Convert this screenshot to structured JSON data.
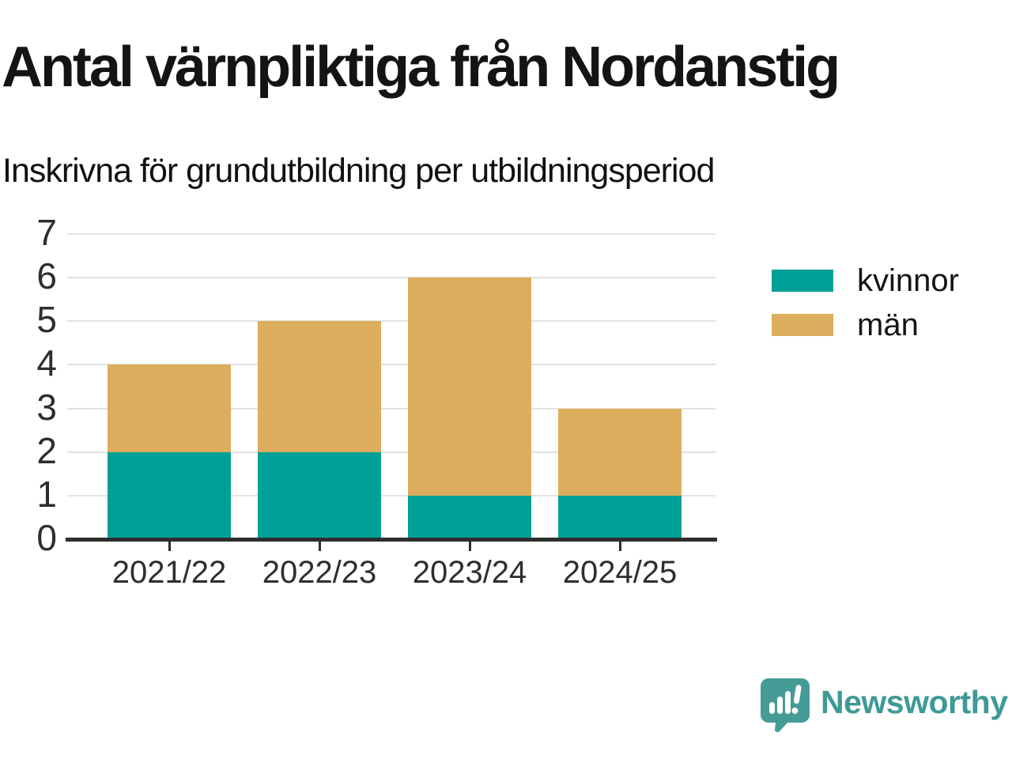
{
  "header": {
    "title": "Antal värnpliktiga från Nordanstig",
    "subtitle": "Inskrivna för grundutbildning per utbildningsperiod"
  },
  "chart_data": {
    "type": "bar",
    "stacked": true,
    "categories": [
      "2021/22",
      "2022/23",
      "2023/24",
      "2024/25"
    ],
    "series": [
      {
        "name": "kvinnor",
        "color": "#00A096",
        "values": [
          2,
          2,
          1,
          1
        ]
      },
      {
        "name": "män",
        "color": "#DBAD5C",
        "values": [
          2,
          3,
          5,
          2
        ]
      }
    ],
    "totals": [
      4,
      5,
      6,
      3
    ],
    "title": "Antal värnpliktiga från Nordanstig",
    "subtitle": "Inskrivna för grundutbildning per utbildningsperiod",
    "xlabel": "",
    "ylabel": "",
    "ylim": [
      0,
      7
    ],
    "ytick_step": 1,
    "yticks": [
      0,
      1,
      2,
      3,
      4,
      5,
      6,
      7
    ],
    "grid": "horizontal",
    "legend_position": "right"
  },
  "colors": {
    "grid": "#e2e2e2",
    "axis": "#2e2e2e",
    "text": "#141414",
    "brand": "#3E9A96"
  },
  "footer": {
    "brand": "Newsworthy"
  }
}
